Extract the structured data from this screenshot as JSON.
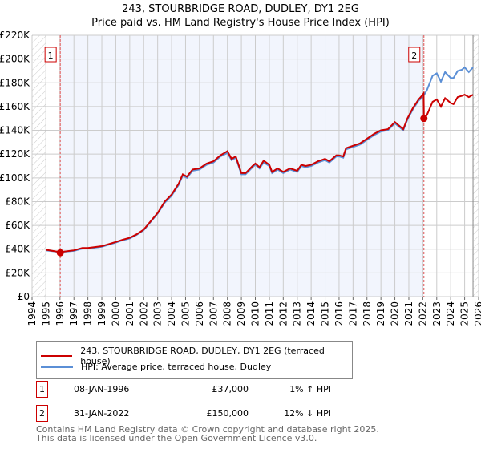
{
  "title_line1": "243, STOURBRIDGE ROAD, DUDLEY, DY1 2EG",
  "title_line2": "Price paid vs. HM Land Registry's House Price Index (HPI)",
  "chart_data": {
    "type": "line",
    "xlim": [
      1994,
      2026
    ],
    "ylim": [
      0,
      220000
    ],
    "x_ticks": [
      "1994",
      "1995",
      "1996",
      "1997",
      "1998",
      "1999",
      "2000",
      "2001",
      "2002",
      "2003",
      "2004",
      "2005",
      "2006",
      "2007",
      "2008",
      "2009",
      "2010",
      "2011",
      "2012",
      "2013",
      "2014",
      "2015",
      "2016",
      "2017",
      "2018",
      "2019",
      "2020",
      "2021",
      "2022",
      "2023",
      "2024",
      "2025",
      "2026"
    ],
    "y_ticks": [
      {
        "v": 0,
        "label": "£0"
      },
      {
        "v": 20000,
        "label": "£20K"
      },
      {
        "v": 40000,
        "label": "£40K"
      },
      {
        "v": 60000,
        "label": "£60K"
      },
      {
        "v": 80000,
        "label": "£80K"
      },
      {
        "v": 100000,
        "label": "£100K"
      },
      {
        "v": 120000,
        "label": "£120K"
      },
      {
        "v": 140000,
        "label": "£140K"
      },
      {
        "v": 160000,
        "label": "£160K"
      },
      {
        "v": 180000,
        "label": "£180K"
      },
      {
        "v": 200000,
        "label": "£200K"
      },
      {
        "v": 220000,
        "label": "£220K"
      }
    ],
    "data_range": [
      1995.0,
      2025.6
    ],
    "series": [
      {
        "name": "HPI: Average price, terraced house, Dudley",
        "color": "#5b8fd6",
        "points": [
          [
            1995,
            39
          ],
          [
            1996,
            37.5
          ],
          [
            1997,
            38.5
          ],
          [
            1997.6,
            40.5
          ],
          [
            1998,
            40.5
          ],
          [
            1999,
            42
          ],
          [
            2000,
            45.5
          ],
          [
            2000.5,
            47.5
          ],
          [
            2001,
            49
          ],
          [
            2001.5,
            52
          ],
          [
            2002,
            56
          ],
          [
            2002.5,
            63
          ],
          [
            2003,
            70
          ],
          [
            2003.5,
            79
          ],
          [
            2004,
            85
          ],
          [
            2004.5,
            94
          ],
          [
            2004.8,
            102
          ],
          [
            2005.1,
            100
          ],
          [
            2005.5,
            106
          ],
          [
            2006,
            107
          ],
          [
            2006.5,
            111
          ],
          [
            2007,
            113
          ],
          [
            2007.5,
            118
          ],
          [
            2008,
            121
          ],
          [
            2008.3,
            115
          ],
          [
            2008.6,
            117
          ],
          [
            2009,
            103
          ],
          [
            2009.3,
            103
          ],
          [
            2009.8,
            109
          ],
          [
            2010,
            111
          ],
          [
            2010.3,
            108
          ],
          [
            2010.6,
            113
          ],
          [
            2011,
            110
          ],
          [
            2011.2,
            104
          ],
          [
            2011.6,
            107
          ],
          [
            2012,
            104
          ],
          [
            2012.5,
            107
          ],
          [
            2013,
            105
          ],
          [
            2013.3,
            110
          ],
          [
            2013.6,
            109
          ],
          [
            2014,
            110
          ],
          [
            2014.5,
            113
          ],
          [
            2015,
            115
          ],
          [
            2015.3,
            113
          ],
          [
            2015.8,
            118
          ],
          [
            2016,
            118
          ],
          [
            2016.3,
            117
          ],
          [
            2016.5,
            124
          ],
          [
            2017,
            126
          ],
          [
            2017.5,
            128
          ],
          [
            2018,
            132
          ],
          [
            2018.5,
            136
          ],
          [
            2019,
            139
          ],
          [
            2019.5,
            140
          ],
          [
            2020,
            146
          ],
          [
            2020.6,
            140
          ],
          [
            2020.9,
            149
          ],
          [
            2021.3,
            158
          ],
          [
            2021.7,
            165
          ],
          [
            2022,
            168
          ],
          [
            2022.3,
            174
          ],
          [
            2022.7,
            186
          ],
          [
            2023,
            188
          ],
          [
            2023.3,
            181
          ],
          [
            2023.6,
            189
          ],
          [
            2024,
            184
          ],
          [
            2024.2,
            184
          ],
          [
            2024.5,
            190
          ],
          [
            2024.8,
            191
          ],
          [
            2025,
            193
          ],
          [
            2025.3,
            189
          ],
          [
            2025.6,
            193
          ]
        ]
      },
      {
        "name": "243, STOURBRIDGE ROAD, DUDLEY, DY1 2EG (terraced house)",
        "color": "#cc0000",
        "points": [
          [
            1995,
            39.5
          ],
          [
            1996,
            37.5
          ],
          [
            1997,
            39
          ],
          [
            1997.6,
            41
          ],
          [
            1998,
            41
          ],
          [
            1999,
            42.5
          ],
          [
            2000,
            46
          ],
          [
            2000.5,
            48
          ],
          [
            2001,
            49.5
          ],
          [
            2001.5,
            52.5
          ],
          [
            2002,
            56.5
          ],
          [
            2002.5,
            63.5
          ],
          [
            2003,
            70.5
          ],
          [
            2003.5,
            80
          ],
          [
            2004,
            86
          ],
          [
            2004.5,
            95
          ],
          [
            2004.8,
            103
          ],
          [
            2005.1,
            101
          ],
          [
            2005.5,
            107
          ],
          [
            2006,
            108
          ],
          [
            2006.5,
            112
          ],
          [
            2007,
            114
          ],
          [
            2007.5,
            119
          ],
          [
            2008,
            122.5
          ],
          [
            2008.3,
            116
          ],
          [
            2008.6,
            118
          ],
          [
            2009,
            104
          ],
          [
            2009.3,
            104
          ],
          [
            2009.8,
            110
          ],
          [
            2010,
            112
          ],
          [
            2010.3,
            109
          ],
          [
            2010.6,
            114.5
          ],
          [
            2011,
            111
          ],
          [
            2011.2,
            105
          ],
          [
            2011.6,
            108
          ],
          [
            2012,
            105
          ],
          [
            2012.5,
            108
          ],
          [
            2013,
            106
          ],
          [
            2013.3,
            111
          ],
          [
            2013.6,
            110
          ],
          [
            2014,
            111
          ],
          [
            2014.5,
            114
          ],
          [
            2015,
            116
          ],
          [
            2015.3,
            114
          ],
          [
            2015.8,
            119
          ],
          [
            2016,
            119
          ],
          [
            2016.3,
            118
          ],
          [
            2016.5,
            125
          ],
          [
            2017,
            127
          ],
          [
            2017.5,
            129
          ],
          [
            2018,
            133
          ],
          [
            2018.5,
            137
          ],
          [
            2019,
            140
          ],
          [
            2019.5,
            141
          ],
          [
            2020,
            147
          ],
          [
            2020.6,
            141
          ],
          [
            2020.9,
            150
          ],
          [
            2021.3,
            159
          ],
          [
            2021.7,
            166
          ],
          [
            2022,
            170
          ],
          [
            2022.06,
            171
          ],
          [
            2022.08,
            150
          ],
          [
            2022.3,
            153
          ],
          [
            2022.7,
            164
          ],
          [
            2023,
            166
          ],
          [
            2023.3,
            160
          ],
          [
            2023.6,
            167
          ],
          [
            2024,
            163
          ],
          [
            2024.2,
            162
          ],
          [
            2024.5,
            168
          ],
          [
            2024.8,
            169
          ],
          [
            2025,
            170
          ],
          [
            2025.3,
            168
          ],
          [
            2025.6,
            170
          ]
        ]
      }
    ],
    "sales": [
      {
        "label": "1",
        "x": 1996.02,
        "y": 37
      },
      {
        "label": "2",
        "x": 2022.08,
        "y": 150
      }
    ],
    "y_units": "thousands GBP"
  },
  "legend": [
    {
      "label": "243, STOURBRIDGE ROAD, DUDLEY, DY1 2EG (terraced house)",
      "color": "#cc0000"
    },
    {
      "label": "HPI: Average price, terraced house, Dudley",
      "color": "#5b8fd6"
    }
  ],
  "transactions": [
    {
      "num": "1",
      "date": "08-JAN-1996",
      "price": "£37,000",
      "hpi": "1% ↑ HPI"
    },
    {
      "num": "2",
      "date": "31-JAN-2022",
      "price": "£150,000",
      "hpi": "12% ↓ HPI"
    }
  ],
  "footer_line1": "Contains HM Land Registry data © Crown copyright and database right 2025.",
  "footer_line2": "This data is licensed under the Open Government Licence v3.0."
}
